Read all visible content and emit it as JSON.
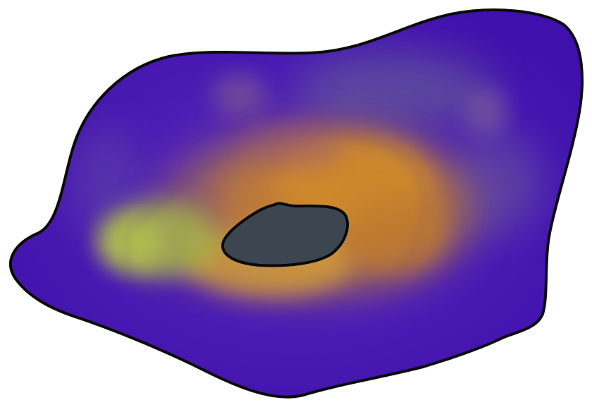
{
  "image": {
    "kind": "cell-heatmap-illustration",
    "background": "#ffffff",
    "colors": {
      "outline": "#0b0b0b",
      "body_base": "#4b16b8",
      "body_edge": "#3a0ea4",
      "haze_purple": "#6a4fa6",
      "haze_gray": "#6b6a8e",
      "center_orange": "#d0822c",
      "center_amber": "#c78a3d",
      "left_green": "#9fb445",
      "nucleus_fill": "#3d4650",
      "nucleus_outline": "#0a0a0a"
    },
    "regions": [
      "cell-body",
      "intensity-glow",
      "nucleus"
    ]
  }
}
